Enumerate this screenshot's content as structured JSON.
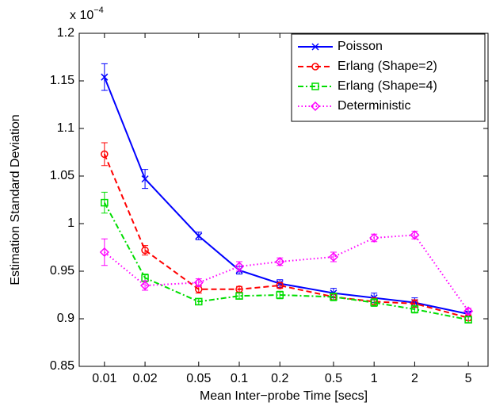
{
  "chart_data": {
    "type": "line",
    "xlabel": "Mean Inter−probe Time [secs]",
    "ylabel": "Estimation Standard Deviation",
    "multiplier": "x 10",
    "multiplier_exponent": "−4",
    "x": [
      0.01,
      0.02,
      0.05,
      0.1,
      0.2,
      0.5,
      1,
      2,
      5
    ],
    "xscale": "log",
    "xlim": [
      0.0065,
      7
    ],
    "xticks": [
      0.01,
      0.02,
      0.05,
      0.1,
      0.2,
      0.5,
      1,
      2,
      5
    ],
    "ylim": [
      0.85,
      1.2
    ],
    "yticks": [
      0.85,
      0.9,
      0.95,
      1,
      1.05,
      1.1,
      1.15,
      1.2
    ],
    "legend": "upper right",
    "series": [
      {
        "name": "Poisson",
        "color": "#0000ff",
        "linestyle": "solid",
        "marker": "x",
        "values": [
          1.154,
          1.047,
          0.987,
          0.951,
          0.937,
          0.927,
          0.922,
          0.917,
          0.905
        ],
        "errors": [
          0.014,
          0.01,
          0.004,
          0.004,
          0.004,
          0.005,
          0.005,
          0.005,
          0.003
        ]
      },
      {
        "name": "Erlang (Shape=2)",
        "color": "#ff0000",
        "linestyle": "dashed",
        "marker": "o",
        "values": [
          1.073,
          0.972,
          0.931,
          0.931,
          0.935,
          0.923,
          0.918,
          0.916,
          0.901
        ],
        "errors": [
          0.012,
          0.005,
          0.004,
          0.003,
          0.003,
          0.003,
          0.004,
          0.004,
          0.003
        ]
      },
      {
        "name": "Erlang (Shape=4)",
        "color": "#00dd00",
        "linestyle": "dashdot",
        "marker": "s",
        "values": [
          1.022,
          0.943,
          0.918,
          0.924,
          0.925,
          0.923,
          0.917,
          0.91,
          0.899
        ],
        "errors": [
          0.011,
          0.004,
          0.003,
          0.003,
          0.004,
          0.004,
          0.004,
          0.004,
          0.003
        ]
      },
      {
        "name": "Deterministic",
        "color": "#ff00ff",
        "linestyle": "dotted",
        "marker": "d",
        "values": [
          0.97,
          0.935,
          0.938,
          0.955,
          0.96,
          0.965,
          0.985,
          0.988,
          0.908
        ],
        "errors": [
          0.014,
          0.005,
          0.004,
          0.005,
          0.004,
          0.005,
          0.004,
          0.004,
          0.003
        ]
      }
    ]
  }
}
